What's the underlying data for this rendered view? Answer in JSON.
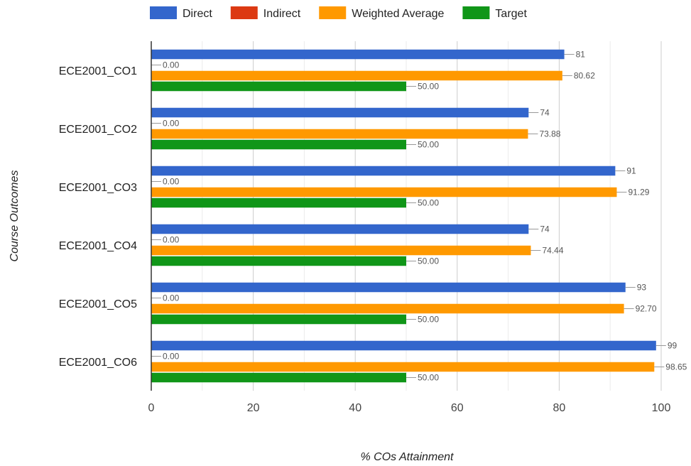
{
  "chart_data": {
    "type": "bar",
    "orientation": "horizontal",
    "categories": [
      "ECE2001_CO1",
      "ECE2001_CO2",
      "ECE2001_CO3",
      "ECE2001_CO4",
      "ECE2001_CO5",
      "ECE2001_CO6"
    ],
    "series": [
      {
        "name": "Direct",
        "color": "#3366cc",
        "values": [
          81,
          74,
          91,
          74,
          93,
          99
        ],
        "labels": [
          "81",
          "74",
          "91",
          "74",
          "93",
          "99"
        ]
      },
      {
        "name": "Indirect",
        "color": "#dc3912",
        "values": [
          0,
          0,
          0,
          0,
          0,
          0
        ],
        "labels": [
          "0.00",
          "0.00",
          "0.00",
          "0.00",
          "0.00",
          "0.00"
        ]
      },
      {
        "name": "Weighted Average",
        "color": "#ff9900",
        "values": [
          80.62,
          73.88,
          91.29,
          74.44,
          92.7,
          98.65
        ],
        "labels": [
          "80.62",
          "73.88",
          "91.29",
          "74.44",
          "92.70",
          "98.65"
        ]
      },
      {
        "name": "Target",
        "color": "#109618",
        "values": [
          50,
          50,
          50,
          50,
          50,
          50
        ],
        "labels": [
          "50.00",
          "50.00",
          "50.00",
          "50.00",
          "50.00",
          "50.00"
        ]
      }
    ],
    "xlabel": "% COs Attainment",
    "ylabel": "Course Outcomes",
    "xlim": [
      0,
      100
    ],
    "xticks": [
      0,
      20,
      40,
      60,
      80,
      100
    ],
    "xtick_labels": [
      "0",
      "20",
      "40",
      "60",
      "80",
      "100"
    ],
    "grid": true,
    "legend_position": "top"
  }
}
